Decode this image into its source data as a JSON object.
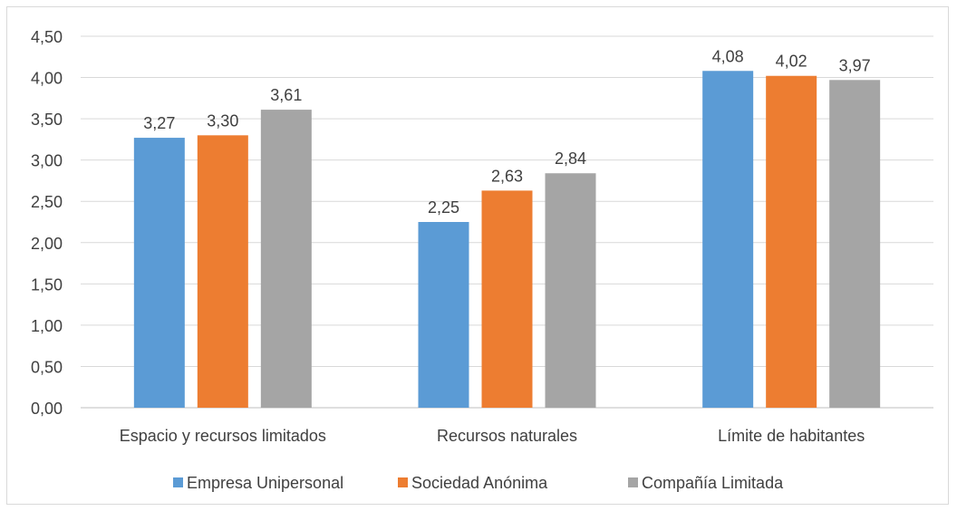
{
  "chart_data": {
    "type": "bar",
    "title": "",
    "xlabel": "",
    "ylabel": "",
    "categories": [
      "Espacio y recursos limitados",
      "Recursos naturales",
      "Límite de habitantes"
    ],
    "series": [
      {
        "name": "Empresa Unipersonal",
        "color": "#5b9bd5",
        "values": [
          3.27,
          2.25,
          4.08
        ],
        "labels": [
          "3,27",
          "2,25",
          "4,08"
        ]
      },
      {
        "name": "Sociedad Anónima",
        "color": "#ed7d31",
        "values": [
          3.3,
          2.63,
          4.02
        ],
        "labels": [
          "3,30",
          "2,63",
          "4,02"
        ]
      },
      {
        "name": "Compañía Limitada",
        "color": "#a5a5a5",
        "values": [
          3.61,
          2.84,
          3.97
        ],
        "labels": [
          "3,61",
          "2,84",
          "3,97"
        ]
      }
    ],
    "ylim": [
      0,
      4.5
    ],
    "yticks": [
      0,
      0.5,
      1.0,
      1.5,
      2.0,
      2.5,
      3.0,
      3.5,
      4.0,
      4.5
    ],
    "ytick_labels": [
      "0,00",
      "0,50",
      "1,00",
      "1,50",
      "2,00",
      "2,50",
      "3,00",
      "3,50",
      "4,00",
      "4,50"
    ],
    "grid": true,
    "legend_position": "bottom"
  }
}
